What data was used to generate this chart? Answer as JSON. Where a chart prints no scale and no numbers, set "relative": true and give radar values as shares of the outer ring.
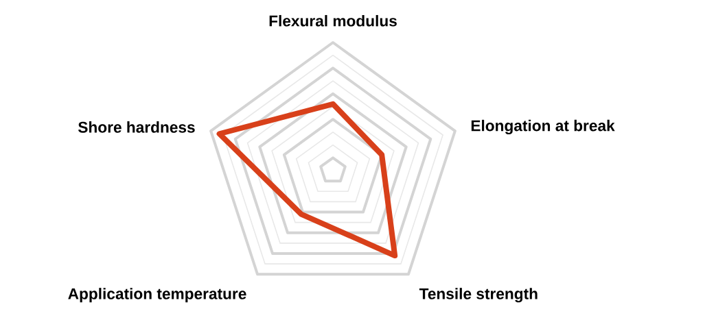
{
  "chart_data": {
    "type": "radar",
    "relative": true,
    "grid": true,
    "categories": [
      "Flexural modulus",
      "Elongation at break",
      "Tensile strength",
      "Application temperature",
      "Shore hardness"
    ],
    "series": [
      {
        "color": "#d8401a",
        "values": [
          0.52,
          0.4,
          0.82,
          0.42,
          0.93
        ]
      }
    ]
  }
}
